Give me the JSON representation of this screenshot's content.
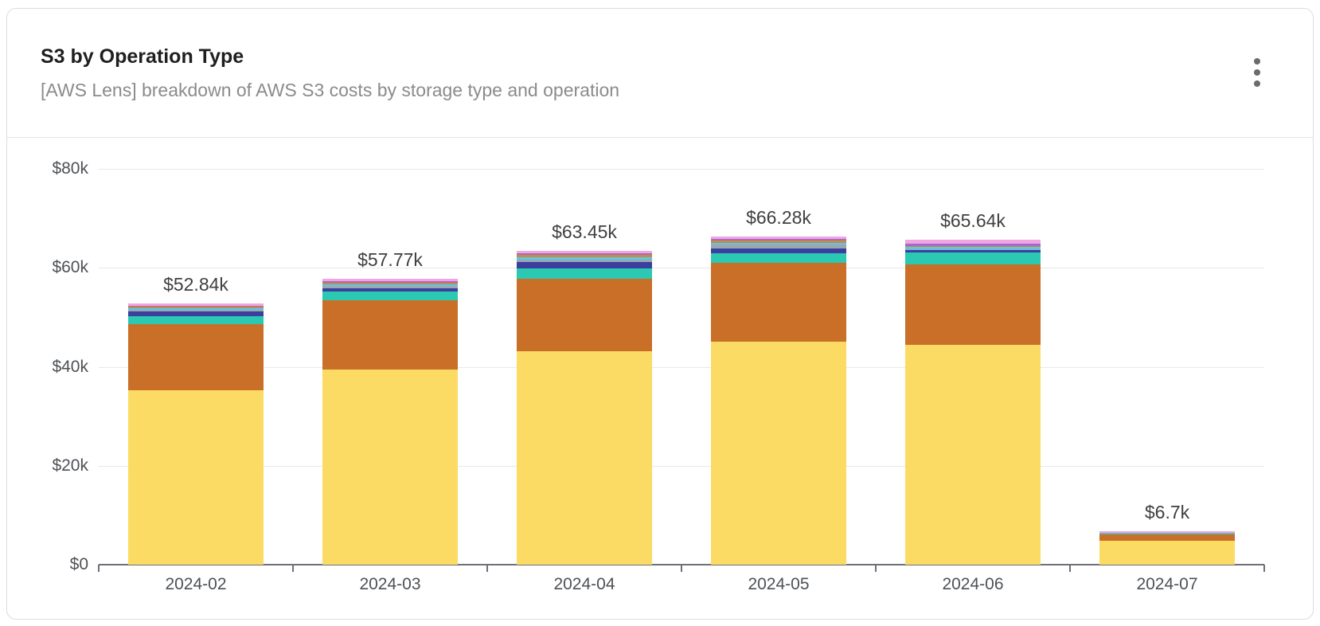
{
  "header": {
    "title": "S3 by Operation Type",
    "subtitle": "[AWS Lens] breakdown of AWS S3 costs by storage type and operation",
    "menu_icon": "kebab-menu-icon"
  },
  "chart_data": {
    "type": "bar",
    "stacked": true,
    "unit": "USD thousands",
    "title": "S3 by Operation Type",
    "xlabel": "",
    "ylabel": "",
    "grid": true,
    "legend": "none",
    "ylim": [
      0,
      80
    ],
    "categories": [
      "2024-02",
      "2024-03",
      "2024-04",
      "2024-05",
      "2024-06",
      "2024-07"
    ],
    "series": [
      {
        "name": "segment-yellow",
        "color": "#FBDB64",
        "values": [
          35.24,
          39.45,
          43.21,
          45.15,
          44.47,
          4.8
        ]
      },
      {
        "name": "segment-orange",
        "color": "#C96F28",
        "values": [
          13.4,
          14.0,
          14.6,
          15.9,
          16.2,
          1.35
        ]
      },
      {
        "name": "segment-teal",
        "color": "#2BC8B2",
        "values": [
          1.6,
          1.7,
          2.0,
          1.94,
          2.42,
          0.15
        ]
      },
      {
        "name": "segment-indigo",
        "color": "#3B3F9E",
        "values": [
          1.0,
          0.7,
          1.34,
          0.97,
          0.48,
          0.05
        ]
      },
      {
        "name": "segment-gray",
        "color": "#9AA7B2",
        "values": [
          0.2,
          0.45,
          0.48,
          0.81,
          0.2,
          0.02
        ]
      },
      {
        "name": "segment-lightblue",
        "color": "#5FC5E9",
        "values": [
          0.45,
          0.42,
          0.48,
          0.32,
          0.48,
          0.05
        ]
      },
      {
        "name": "segment-olive",
        "color": "#BE913A",
        "values": [
          0.25,
          0.3,
          0.44,
          0.39,
          0.2,
          0.03
        ]
      },
      {
        "name": "segment-magenta",
        "color": "#AE64C8",
        "values": [
          0.25,
          0.3,
          0.42,
          0.32,
          0.48,
          0.05
        ]
      },
      {
        "name": "segment-pink",
        "color": "#F0A6E0",
        "values": [
          0.45,
          0.45,
          0.48,
          0.48,
          0.71,
          0.2
        ]
      }
    ],
    "totals": [
      52.84,
      57.77,
      63.45,
      66.28,
      65.64,
      6.7
    ],
    "total_labels": [
      "$52.84k",
      "$57.77k",
      "$63.45k",
      "$66.28k",
      "$65.64k",
      "$6.7k"
    ],
    "y_ticks": [
      {
        "value": 0,
        "label": "$0"
      },
      {
        "value": 20,
        "label": "$20k"
      },
      {
        "value": 40,
        "label": "$40k"
      },
      {
        "value": 60,
        "label": "$60k"
      },
      {
        "value": 80,
        "label": "$80k"
      }
    ]
  }
}
